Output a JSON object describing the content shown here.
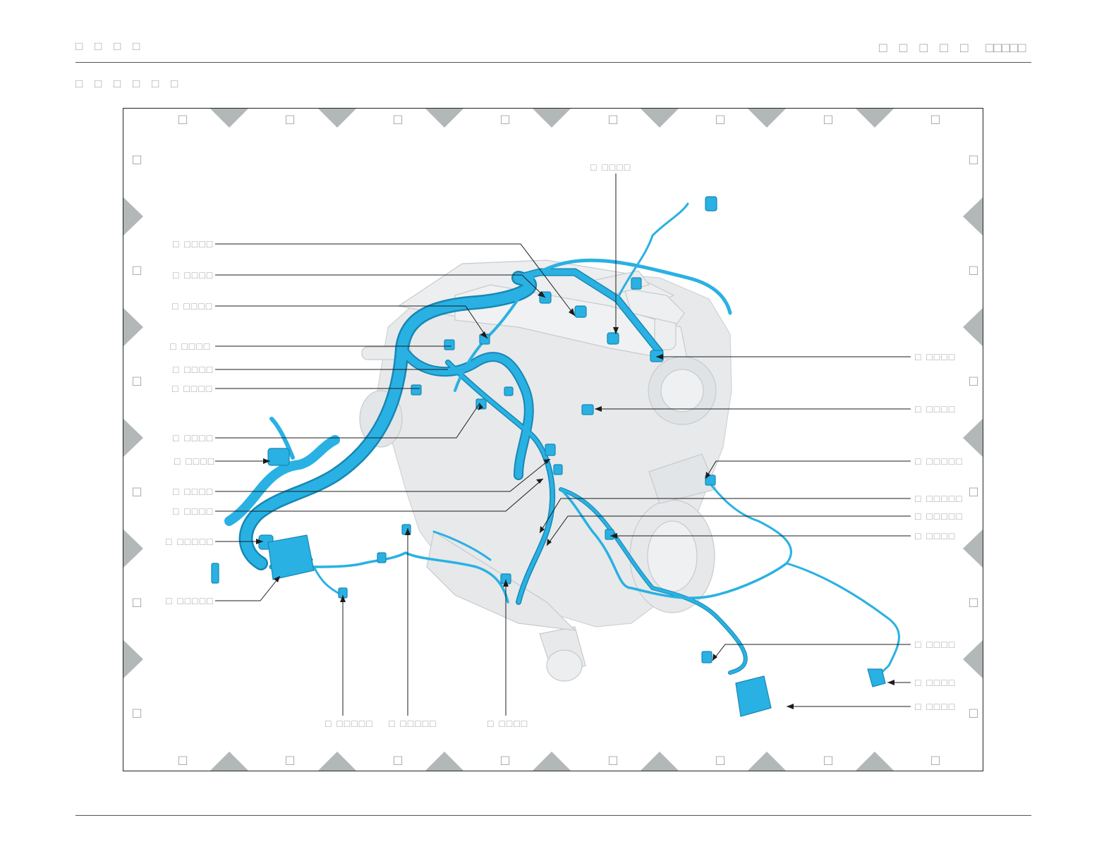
{
  "header": {
    "section_title": "□ □ □ □",
    "right_title": "□ □ □ □ □",
    "right_code": "□□□□□",
    "subtitle": "□ □ □ □ □ □"
  },
  "diagram": {
    "zone_columns": [
      "□",
      "□",
      "□",
      "□",
      "□",
      "□",
      "□",
      "□"
    ],
    "zone_rows": [
      "□",
      "□",
      "□",
      "□",
      "□",
      "□"
    ],
    "callouts": {
      "top": "□ □□□□",
      "l1": "□ □□□□",
      "l2": "□ □□□□",
      "l3": "□ □□□□",
      "l4": "□ □□□□",
      "l5": "□ □□□□",
      "l6": "□ □□□□",
      "l7": "□ □□□□",
      "l8": "□ □□□□",
      "l9": "□ □□□□",
      "l10": "□ □□□□",
      "l11": "□ □□□□□",
      "l12": "□ □□□□□",
      "r1": "□ □□□□",
      "r2": "□ □□□□",
      "r3": "□ □□□□□",
      "r4": "□ □□□□□",
      "r5": "□ □□□□□",
      "r6": "□ □□□□",
      "r7": "□ □□□□",
      "r8": "□ □□□□",
      "r9": "□ □□□□",
      "b1": "□ □□□□□",
      "b2": "□ □□□□□",
      "b3": "□ □□□□"
    },
    "colors": {
      "harness": "#29b1e3",
      "harness_outline": "#1887b3",
      "engine": "#d9dcde",
      "zone_marker": "#b2b7b8",
      "leader": "#1c1c1c"
    }
  }
}
